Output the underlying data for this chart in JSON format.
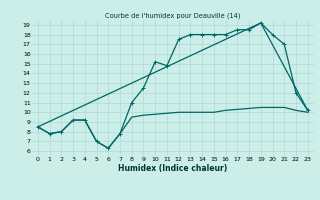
{
  "title": "Courbe de l'humidex pour Deauville (14)",
  "xlabel": "Humidex (Indice chaleur)",
  "bg_color": "#cceee8",
  "grid_color": "#b0d8d4",
  "line_color": "#006666",
  "xlim": [
    -0.5,
    23.5
  ],
  "ylim": [
    5.5,
    19.5
  ],
  "xticks": [
    0,
    1,
    2,
    3,
    4,
    5,
    6,
    7,
    8,
    9,
    10,
    11,
    12,
    13,
    14,
    15,
    16,
    17,
    18,
    19,
    20,
    21,
    22,
    23
  ],
  "yticks": [
    6,
    7,
    8,
    9,
    10,
    11,
    12,
    13,
    14,
    15,
    16,
    17,
    18,
    19
  ],
  "line1_x": [
    0,
    1,
    2,
    3,
    4,
    5,
    6,
    7,
    8,
    9,
    10,
    11,
    12,
    13,
    14,
    15,
    16,
    17,
    18,
    19,
    20,
    21,
    22,
    23
  ],
  "line1_y": [
    8.5,
    7.8,
    8.0,
    9.2,
    9.2,
    7.0,
    6.3,
    7.8,
    9.5,
    9.7,
    9.8,
    9.9,
    10.0,
    10.0,
    10.0,
    10.0,
    10.2,
    10.3,
    10.4,
    10.5,
    10.5,
    10.5,
    10.2,
    10.0
  ],
  "line2_x": [
    0,
    1,
    2,
    3,
    4,
    5,
    6,
    7,
    8,
    9,
    10,
    11,
    12,
    13,
    14,
    15,
    16,
    17,
    18,
    19,
    20,
    21,
    22,
    23
  ],
  "line2_y": [
    8.5,
    7.8,
    8.0,
    9.2,
    9.2,
    7.0,
    6.3,
    7.8,
    11.0,
    12.5,
    15.2,
    14.8,
    17.5,
    18.0,
    18.0,
    18.0,
    18.0,
    18.5,
    18.5,
    19.2,
    18.0,
    17.0,
    12.0,
    10.2
  ],
  "line3_x": [
    0,
    19,
    23
  ],
  "line3_y": [
    8.5,
    19.2,
    10.2
  ],
  "figsize": [
    3.2,
    2.0
  ],
  "dpi": 100
}
